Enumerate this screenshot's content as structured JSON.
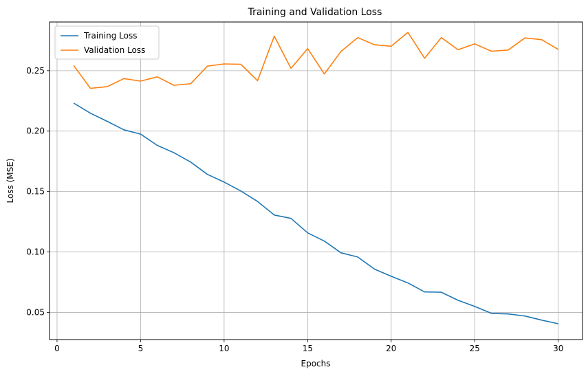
{
  "chart_data": {
    "type": "line",
    "title": "Training and Validation Loss",
    "xlabel": "Epochs",
    "ylabel": "Loss (MSE)",
    "xlim": [
      -0.45,
      31.45
    ],
    "ylim": [
      0.0275,
      0.2903
    ],
    "xticks": [
      0,
      5,
      10,
      15,
      20,
      25,
      30
    ],
    "xtick_labels": [
      "0",
      "5",
      "10",
      "15",
      "20",
      "25",
      "30"
    ],
    "yticks": [
      0.05,
      0.1,
      0.15,
      0.2,
      0.25
    ],
    "ytick_labels": [
      "0.05",
      "0.10",
      "0.15",
      "0.20",
      "0.25"
    ],
    "grid": true,
    "legend_position": "top-left",
    "x": [
      1,
      2,
      3,
      4,
      5,
      6,
      7,
      8,
      9,
      10,
      11,
      12,
      13,
      14,
      15,
      16,
      17,
      18,
      19,
      20,
      21,
      22,
      23,
      24,
      25,
      26,
      27,
      28,
      29,
      30
    ],
    "series": [
      {
        "name": "Training Loss",
        "color": "#1f77b4",
        "values": [
          0.2232,
          0.2148,
          0.2081,
          0.2011,
          0.1975,
          0.1882,
          0.1821,
          0.1744,
          0.1642,
          0.1578,
          0.1505,
          0.1418,
          0.1306,
          0.1278,
          0.1158,
          0.109,
          0.0993,
          0.0958,
          0.0858,
          0.0799,
          0.0744,
          0.0669,
          0.0667,
          0.06,
          0.055,
          0.0492,
          0.0487,
          0.047,
          0.0436,
          0.0406
        ]
      },
      {
        "name": "Validation Loss",
        "color": "#ff7f0e",
        "values": [
          0.2543,
          0.2354,
          0.2368,
          0.2435,
          0.2414,
          0.2449,
          0.2379,
          0.2392,
          0.2538,
          0.2556,
          0.2553,
          0.2417,
          0.2786,
          0.2519,
          0.2683,
          0.2473,
          0.266,
          0.2774,
          0.2715,
          0.2702,
          0.2817,
          0.2603,
          0.2774,
          0.2673,
          0.2722,
          0.2661,
          0.2671,
          0.2771,
          0.2757,
          0.2676
        ]
      }
    ]
  }
}
